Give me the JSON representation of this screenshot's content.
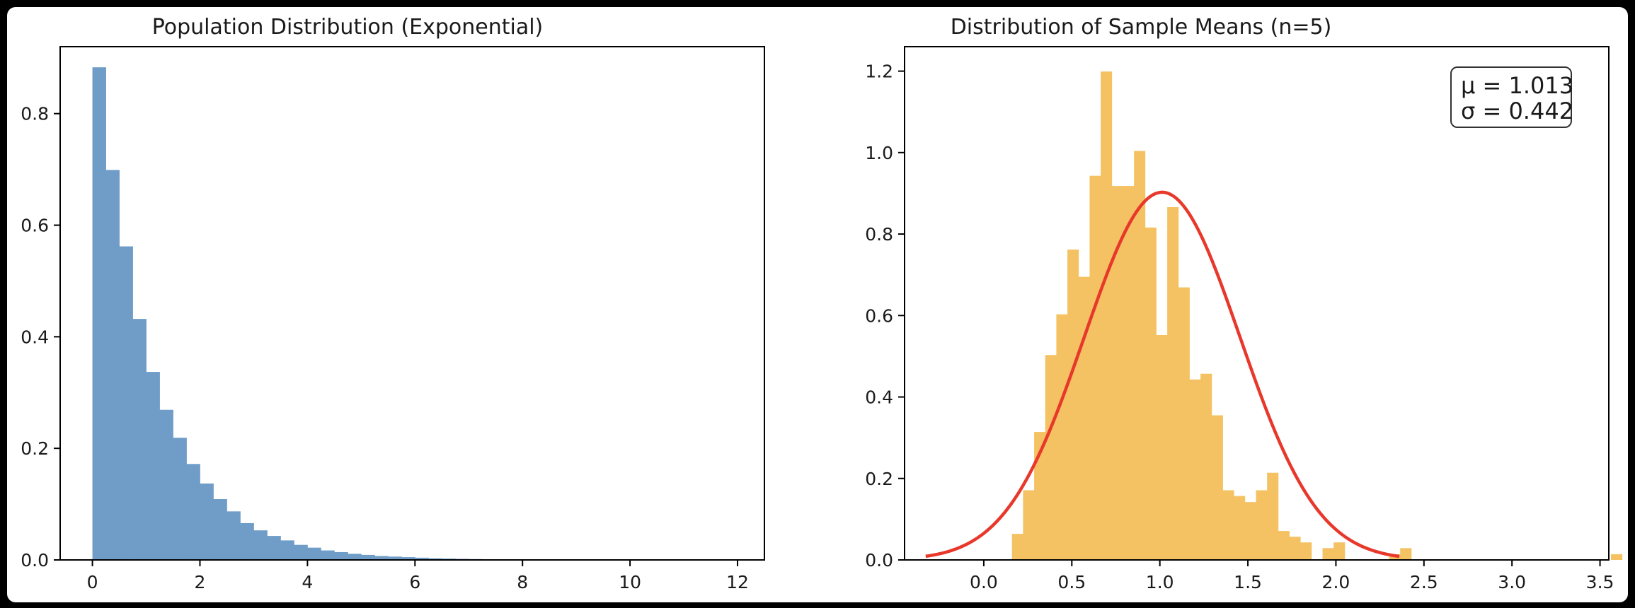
{
  "chart_data": [
    {
      "type": "bar",
      "title": "Population Distribution (Exponential)",
      "xlabel": "",
      "ylabel": "",
      "xlim": [
        -0.6,
        12.5
      ],
      "ylim": [
        0,
        0.92
      ],
      "xticks": [
        0,
        2,
        4,
        6,
        8,
        10,
        12
      ],
      "yticks": [
        0.0,
        0.2,
        0.4,
        0.6,
        0.8
      ],
      "tick_decimals": 1,
      "bin_start": 0.0,
      "bin_width": 0.25,
      "values": [
        0.883,
        0.699,
        0.562,
        0.432,
        0.337,
        0.269,
        0.219,
        0.172,
        0.137,
        0.109,
        0.087,
        0.066,
        0.053,
        0.043,
        0.035,
        0.027,
        0.022,
        0.017,
        0.014,
        0.011,
        0.009,
        0.007,
        0.006,
        0.005,
        0.004,
        0.003,
        0.0025,
        0.002,
        0.0016,
        0.0013,
        0.001,
        0.0008
      ],
      "color": "#6f9dc8"
    },
    {
      "type": "bar",
      "title": "Distribution of Sample Means (n=5)",
      "xlabel": "",
      "ylabel": "",
      "xlim": [
        -0.45,
        3.55
      ],
      "ylim": [
        0,
        1.26
      ],
      "xticks": [
        0.0,
        0.5,
        1.0,
        1.5,
        2.0,
        2.5,
        3.0,
        3.5
      ],
      "yticks": [
        0.0,
        0.2,
        0.4,
        0.6,
        0.8,
        1.0,
        1.2
      ],
      "tick_decimals": 1,
      "bin_start": 0.16,
      "bin_width": 0.063,
      "values": [
        0.064,
        0.171,
        0.314,
        0.503,
        0.603,
        0.762,
        0.695,
        0.943,
        1.199,
        0.918,
        0.918,
        1.004,
        0.816,
        0.552,
        0.866,
        0.669,
        0.443,
        0.457,
        0.355,
        0.171,
        0.157,
        0.142,
        0.171,
        0.214,
        0.071,
        0.057,
        0.043,
        0.0,
        0.029,
        0.043,
        0.0,
        0.0,
        0.0,
        0.0,
        0.014,
        0.029,
        0.0,
        0.0,
        0.0,
        0.0,
        0.0,
        0.0,
        0.0,
        0.0,
        0.0,
        0.0,
        0.0,
        0.0,
        0.0,
        0.0,
        0.0,
        0.0,
        0.0,
        0.0,
        0.014
      ],
      "color": "#f4c263",
      "curve": {
        "type": "normal-pdf",
        "mean": 1.013,
        "sd": 0.442,
        "x_range": [
          -0.33,
          2.36
        ],
        "color": "#e8382b"
      },
      "stats_box": {
        "mu_label": "μ = 1.013",
        "sigma_label": "σ = 0.442",
        "position": "top-right"
      }
    }
  ]
}
